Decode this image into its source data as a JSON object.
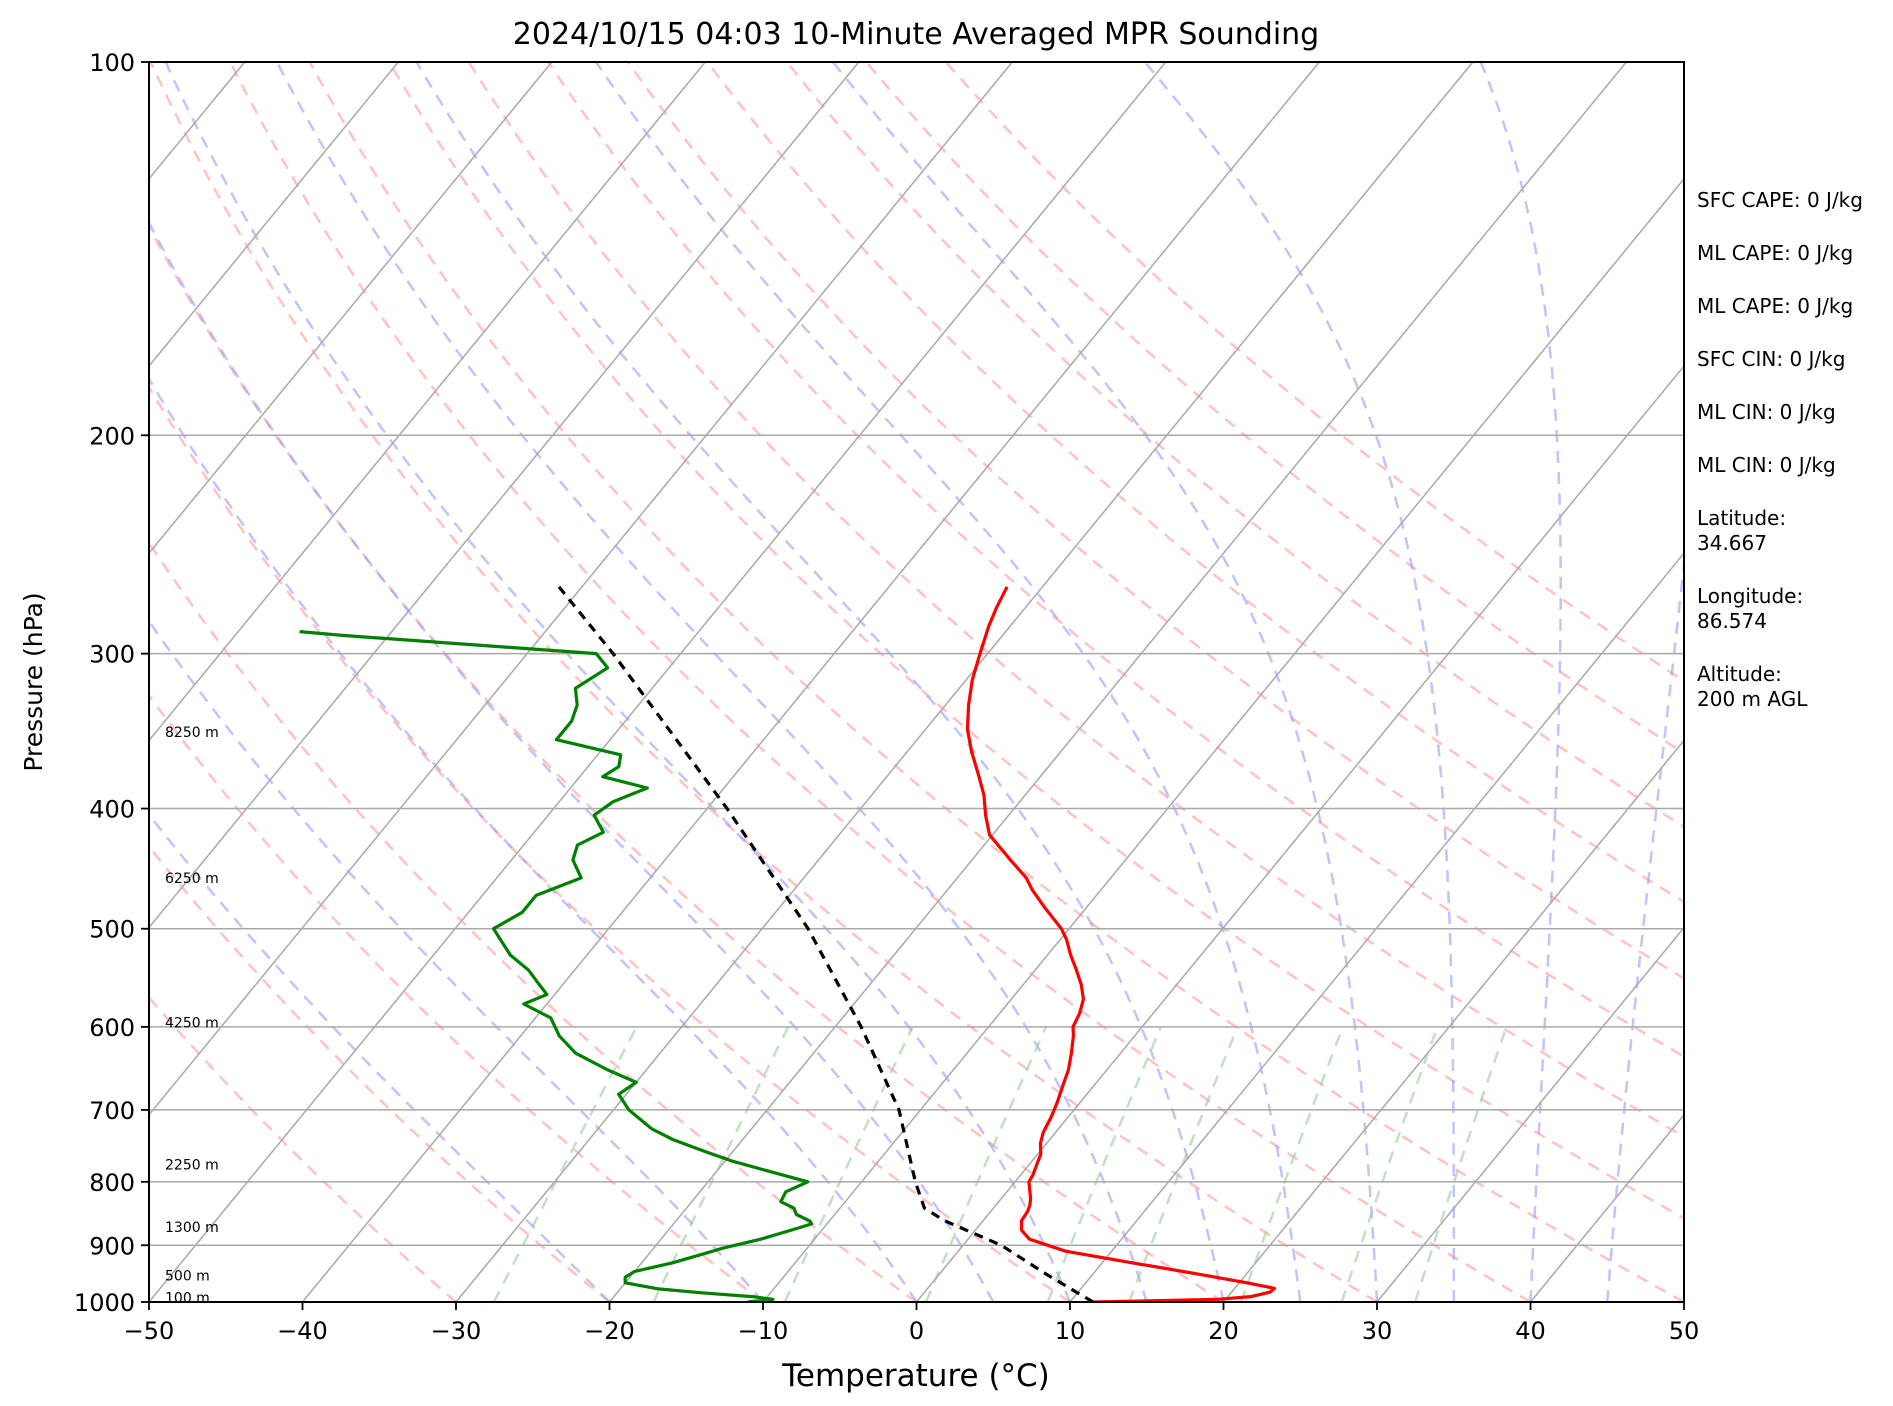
{
  "chart_data": {
    "type": "line",
    "title": "2024/10/15 04:03 10-Minute Averaged MPR Sounding",
    "xlabel": "Temperature (°C)",
    "ylabel": "Pressure (hPa)",
    "xlim": [
      -50,
      50
    ],
    "ylim": [
      1000,
      100
    ],
    "y_scale": "log",
    "skew": true,
    "grid": true,
    "x_ticks": [
      -50,
      -40,
      -30,
      -20,
      -10,
      0,
      10,
      20,
      30,
      40,
      50
    ],
    "x_tick_labels": [
      "−50",
      "−40",
      "−30",
      "−20",
      "−10",
      "0",
      "10",
      "20",
      "30",
      "40",
      "50"
    ],
    "y_ticks": [
      1000,
      900,
      800,
      700,
      600,
      500,
      400,
      300,
      200,
      100
    ],
    "y_tick_labels": [
      "1000",
      "900",
      "800",
      "700",
      "600",
      "500",
      "400",
      "300",
      "200",
      "100"
    ],
    "height_labels": [
      {
        "label": "100 m",
        "p": 992
      },
      {
        "label": "500 m",
        "p": 952
      },
      {
        "label": "1300 m",
        "p": 870
      },
      {
        "label": "2250 m",
        "p": 775
      },
      {
        "label": "4250 m",
        "p": 595
      },
      {
        "label": "6250 m",
        "p": 455
      },
      {
        "label": "8250 m",
        "p": 347
      }
    ],
    "series": [
      {
        "id": "temperature",
        "color": "#ff0000",
        "points": [
          [
            1000,
            11.5
          ],
          [
            998,
            15
          ],
          [
            995,
            19.5
          ],
          [
            990,
            21.5
          ],
          [
            982,
            22.5
          ],
          [
            975,
            22.6
          ],
          [
            965,
            20.5
          ],
          [
            950,
            17
          ],
          [
            930,
            12
          ],
          [
            910,
            7
          ],
          [
            890,
            4
          ],
          [
            875,
            3
          ],
          [
            860,
            2.5
          ],
          [
            845,
            2.4
          ],
          [
            835,
            2.2
          ],
          [
            825,
            1.9
          ],
          [
            815,
            1.5
          ],
          [
            800,
            0.9
          ],
          [
            790,
            0.8
          ],
          [
            775,
            0.5
          ],
          [
            760,
            0.2
          ],
          [
            745,
            -0.4
          ],
          [
            730,
            -0.8
          ],
          [
            710,
            -1.1
          ],
          [
            690,
            -1.5
          ],
          [
            670,
            -2
          ],
          [
            650,
            -2.5
          ],
          [
            630,
            -3.2
          ],
          [
            610,
            -4
          ],
          [
            600,
            -4.5
          ],
          [
            585,
            -4.8
          ],
          [
            570,
            -5.3
          ],
          [
            555,
            -6.2
          ],
          [
            540,
            -7.3
          ],
          [
            525,
            -8.5
          ],
          [
            510,
            -9.6
          ],
          [
            500,
            -10.5
          ],
          [
            480,
            -12.8
          ],
          [
            465,
            -14.5
          ],
          [
            455,
            -15.5
          ],
          [
            440,
            -17.5
          ],
          [
            420,
            -20.2
          ],
          [
            405,
            -21.5
          ],
          [
            390,
            -22.7
          ],
          [
            375,
            -24.2
          ],
          [
            360,
            -25.8
          ],
          [
            345,
            -27.3
          ],
          [
            330,
            -28.5
          ],
          [
            315,
            -29.6
          ],
          [
            300,
            -30.5
          ],
          [
            285,
            -31.4
          ],
          [
            275,
            -31.9
          ],
          [
            265,
            -32.3
          ]
        ]
      },
      {
        "id": "dewpoint",
        "color": "#008000",
        "points": [
          [
            1000,
            -11
          ],
          [
            995,
            -9.5
          ],
          [
            990,
            -11
          ],
          [
            983,
            -14.5
          ],
          [
            976,
            -17.5
          ],
          [
            965,
            -20
          ],
          [
            955,
            -20.3
          ],
          [
            945,
            -20
          ],
          [
            930,
            -18
          ],
          [
            915,
            -16.5
          ],
          [
            905,
            -15.5
          ],
          [
            890,
            -13.5
          ],
          [
            875,
            -12
          ],
          [
            865,
            -11
          ],
          [
            860,
            -11.3
          ],
          [
            850,
            -12.5
          ],
          [
            840,
            -13
          ],
          [
            830,
            -14.2
          ],
          [
            815,
            -14.4
          ],
          [
            800,
            -13.5
          ],
          [
            785,
            -16.5
          ],
          [
            770,
            -19.5
          ],
          [
            755,
            -22
          ],
          [
            740,
            -24.5
          ],
          [
            725,
            -26.5
          ],
          [
            700,
            -29
          ],
          [
            680,
            -30.5
          ],
          [
            665,
            -30
          ],
          [
            650,
            -32.5
          ],
          [
            630,
            -35.5
          ],
          [
            610,
            -37.5
          ],
          [
            590,
            -39
          ],
          [
            575,
            -41.5
          ],
          [
            565,
            -40.5
          ],
          [
            555,
            -41.5
          ],
          [
            540,
            -43
          ],
          [
            525,
            -45
          ],
          [
            500,
            -47.5
          ],
          [
            485,
            -46.5
          ],
          [
            470,
            -46.5
          ],
          [
            455,
            -44.5
          ],
          [
            440,
            -46
          ],
          [
            428,
            -46.5
          ],
          [
            418,
            -45.5
          ],
          [
            405,
            -47
          ],
          [
            395,
            -46.5
          ],
          [
            385,
            -45
          ],
          [
            377,
            -48.5
          ],
          [
            370,
            -48
          ],
          [
            362,
            -48.5
          ],
          [
            352,
            -53.5
          ],
          [
            340,
            -53.5
          ],
          [
            330,
            -54
          ],
          [
            320,
            -55
          ],
          [
            308,
            -54
          ],
          [
            300,
            -55.5
          ],
          [
            290,
            -73
          ],
          [
            288,
            -76
          ]
        ]
      },
      {
        "id": "parcel_profile",
        "color": "#000000",
        "dashed": true,
        "points": [
          [
            1000,
            11.5
          ],
          [
            950,
            7
          ],
          [
            900,
            2.5
          ],
          [
            860,
            -2.5
          ],
          [
            840,
            -4.5
          ],
          [
            800,
            -6.5
          ],
          [
            700,
            -11.4
          ],
          [
            600,
            -18.3
          ],
          [
            500,
            -27
          ],
          [
            400,
            -38.7
          ],
          [
            300,
            -54.4
          ],
          [
            265,
            -61.5
          ]
        ]
      }
    ],
    "reference_lines": {
      "isobars": [
        1000,
        900,
        800,
        700,
        600,
        500,
        400,
        300,
        200,
        100
      ],
      "isotherms": [
        -130,
        -120,
        -110,
        -100,
        -90,
        -80,
        -70,
        -60,
        -50,
        -40,
        -30,
        -20,
        -10,
        0,
        10,
        20,
        30,
        40,
        50
      ],
      "dry_adiabats_theta_c": [
        -30,
        -20,
        -10,
        0,
        10,
        20,
        30,
        40,
        50,
        60,
        70,
        80,
        90,
        100,
        110,
        120,
        130
      ],
      "moist_adiabats_start_c": [
        -20,
        -10,
        0,
        5,
        10,
        15,
        20,
        25,
        30,
        35,
        40,
        45
      ],
      "mixing_ratios_g_kg": [
        0.4,
        1,
        2,
        4,
        7,
        10,
        16,
        24,
        32
      ],
      "colors": {
        "isobar": "#a9a9a9",
        "isotherm": "#a9a9a9",
        "dry_adiabat": "#ff9999",
        "moist_adiabat": "#9999ff",
        "mixing_ratio": "#99cc99"
      }
    }
  },
  "stats": {
    "sfc_cape": "SFC CAPE: 0 J/kg",
    "ml_cape_1": "ML CAPE: 0 J/kg",
    "ml_cape_2": "ML CAPE: 0 J/kg",
    "sfc_cin": "SFC CIN: 0 J/kg",
    "ml_cin_1": "ML CIN: 0 J/kg",
    "ml_cin_2": "ML CIN: 0 J/kg",
    "latitude_label": "Latitude:",
    "latitude_value": "34.667",
    "longitude_label": "Longitude:",
    "longitude_value": "86.574",
    "altitude_label": "Altitude:",
    "altitude_value": "200 m AGL"
  }
}
